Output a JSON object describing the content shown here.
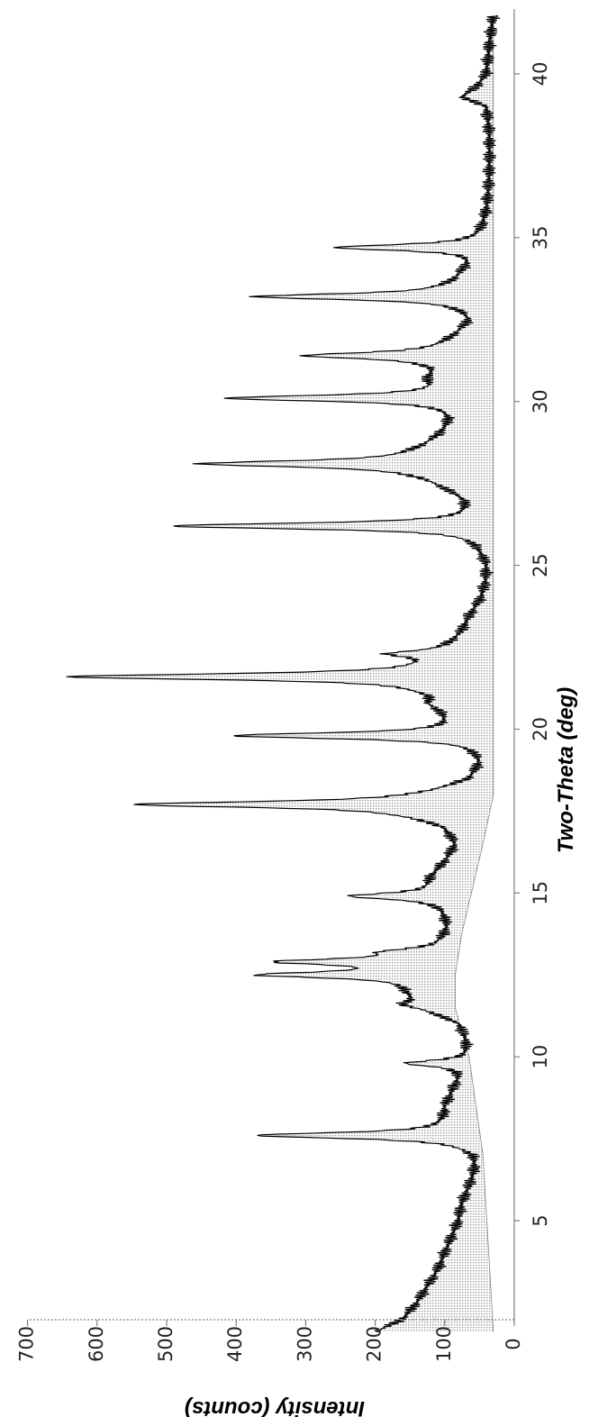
{
  "chart_data": {
    "type": "line",
    "xlabel": "Two-Theta (deg)",
    "ylabel": "Intensity (counts)",
    "xlim": [
      1.5,
      41.8
    ],
    "ylim": [
      0,
      700
    ],
    "x_ticks": [
      5,
      10,
      15,
      20,
      25,
      30,
      35,
      40
    ],
    "y_ticks": [
      0,
      100,
      200,
      300,
      400,
      500,
      600,
      700
    ],
    "grid": false,
    "orientation": "rotated 90 degrees clockwise (x axis runs top to bottom)",
    "fill": "shaded area between pattern and background",
    "background": {
      "x": [
        1.6,
        7.0,
        10.0,
        11.5,
        12.5,
        13.8,
        16.5,
        18.0,
        19.5,
        22.0,
        25.5,
        27.0,
        29.5,
        32.5,
        34.5,
        41.8
      ],
      "y": [
        30,
        45,
        65,
        85,
        85,
        75,
        45,
        30,
        30,
        30,
        30,
        30,
        30,
        30,
        30,
        30
      ]
    },
    "base_curve": {
      "x": [
        1.6,
        2.0,
        2.5,
        3.0,
        3.5,
        4.0,
        4.5,
        5.0,
        5.5,
        6.0,
        6.5,
        7.0,
        8.0,
        8.5,
        9.0,
        9.5,
        10.0,
        10.5,
        11.0,
        11.5,
        12.0,
        13.0,
        13.5,
        14.0,
        14.5,
        15.0,
        15.5,
        16.0,
        16.5,
        17.0,
        17.4,
        18.0,
        18.5,
        19.0,
        19.5,
        20.5,
        20.8,
        21.0,
        21.2,
        22.0,
        22.5,
        23.0,
        23.5,
        24.0,
        24.5,
        25.0,
        25.5,
        26.0,
        26.5,
        27.0,
        27.5,
        28.0,
        28.5,
        29.0,
        29.5,
        30.0,
        30.5,
        30.7,
        31.0,
        31.4,
        32.0,
        32.5,
        33.0,
        33.5,
        34.0,
        34.5,
        35.0,
        35.5,
        36.0,
        37.0,
        38.0,
        38.5,
        39.0,
        39.3,
        39.6,
        40.0,
        41.0,
        41.8
      ],
      "y": [
        200,
        160,
        140,
        125,
        110,
        100,
        90,
        80,
        75,
        65,
        55,
        50,
        90,
        95,
        85,
        70,
        60,
        65,
        75,
        125,
        140,
        110,
        95,
        90,
        95,
        110,
        115,
        95,
        80,
        90,
        130,
        110,
        55,
        40,
        40,
        90,
        110,
        100,
        110,
        100,
        85,
        70,
        60,
        45,
        38,
        35,
        40,
        40,
        45,
        60,
        100,
        140,
        130,
        100,
        80,
        75,
        95,
        110,
        100,
        110,
        80,
        55,
        60,
        80,
        65,
        40,
        42,
        40,
        37,
        35,
        35,
        37,
        40,
        75,
        55,
        40,
        35,
        30
      ]
    },
    "peaks": [
      {
        "x": 7.6,
        "y": 370
      },
      {
        "x": 9.8,
        "y": 155
      },
      {
        "x": 11.6,
        "y": 155
      },
      {
        "x": 12.5,
        "y": 355
      },
      {
        "x": 12.9,
        "y": 325
      },
      {
        "x": 13.2,
        "y": 165
      },
      {
        "x": 14.9,
        "y": 235
      },
      {
        "x": 17.7,
        "y": 545
      },
      {
        "x": 19.8,
        "y": 400
      },
      {
        "x": 21.6,
        "y": 640
      },
      {
        "x": 22.3,
        "y": 170
      },
      {
        "x": 26.2,
        "y": 490
      },
      {
        "x": 28.1,
        "y": 450
      },
      {
        "x": 30.1,
        "y": 410
      },
      {
        "x": 31.4,
        "y": 300
      },
      {
        "x": 33.2,
        "y": 370
      },
      {
        "x": 34.7,
        "y": 255
      }
    ]
  },
  "axes": {
    "x_tick_labels": [
      "5",
      "10",
      "15",
      "20",
      "25",
      "30",
      "35",
      "40"
    ],
    "y_tick_labels": [
      "0",
      "100",
      "200",
      "300",
      "400",
      "500",
      "600",
      "700"
    ]
  }
}
